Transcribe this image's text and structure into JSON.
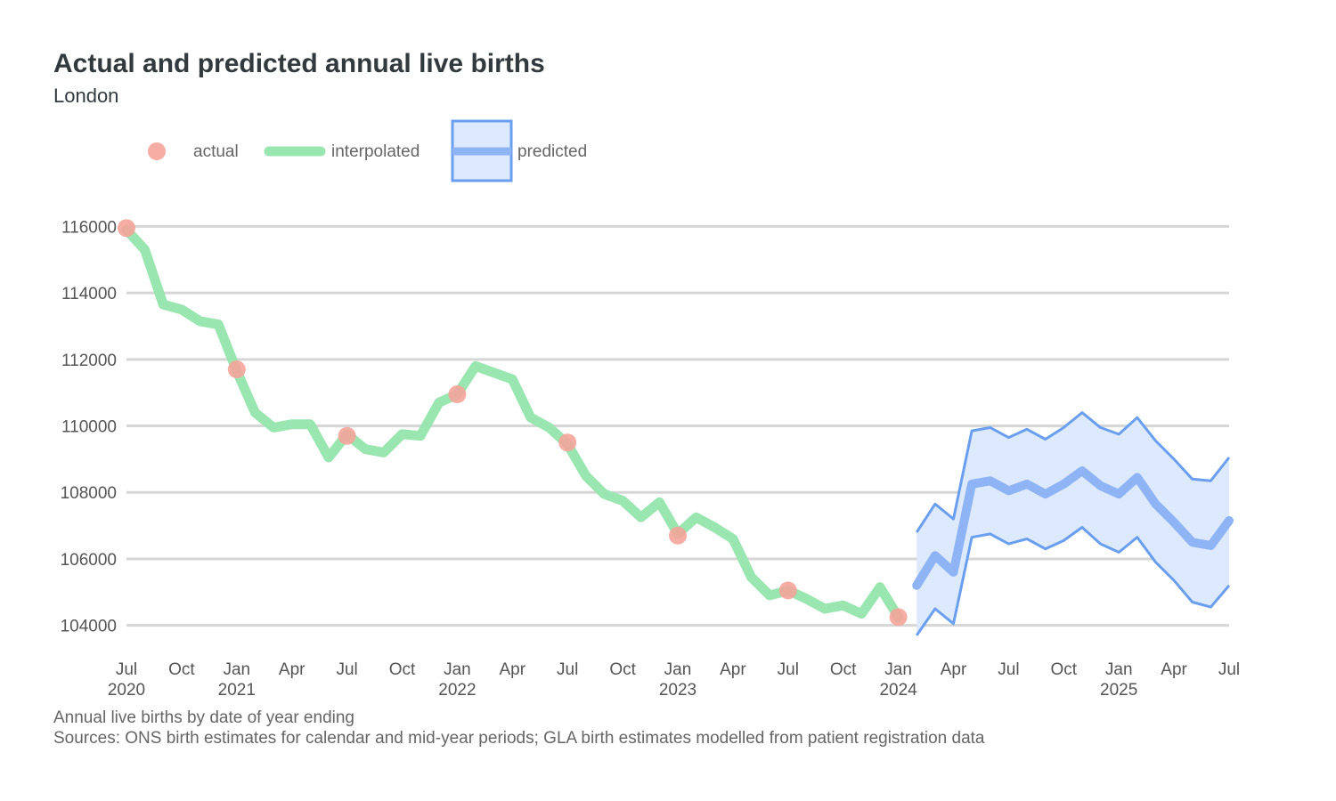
{
  "title": "Actual and predicted annual live births",
  "subtitle": "London",
  "caption": [
    "Annual live births by date of year ending",
    "Sources: ONS birth estimates for calendar and mid-year periods; GLA birth estimates modelled from patient registration data"
  ],
  "legend": {
    "position": "top-left",
    "items": [
      {
        "key": "actual",
        "label": "actual"
      },
      {
        "key": "interpolated",
        "label": "interpolated"
      },
      {
        "key": "predicted",
        "label": "predicted"
      }
    ]
  },
  "colors": {
    "actual": "#f4a49a",
    "interpolated": "#9ae6b0",
    "predicted_line": "#8eb4f5",
    "predicted_band_fill": "#dde9fc",
    "predicted_band_edge": "#6a9ff0",
    "grid": "#d6d6d6"
  },
  "chart_data": {
    "type": "line",
    "x_unit": "month of year ending",
    "xlim": [
      "2020-07",
      "2025-07"
    ],
    "ylim": [
      103000,
      116600
    ],
    "y_ticks": [
      104000,
      106000,
      108000,
      110000,
      112000,
      114000,
      116000
    ],
    "x_ticks": [
      {
        "date": "2020-07",
        "label": "Jul",
        "year": "2020"
      },
      {
        "date": "2020-10",
        "label": "Oct",
        "year": ""
      },
      {
        "date": "2021-01",
        "label": "Jan",
        "year": "2021"
      },
      {
        "date": "2021-04",
        "label": "Apr",
        "year": ""
      },
      {
        "date": "2021-07",
        "label": "Jul",
        "year": ""
      },
      {
        "date": "2021-10",
        "label": "Oct",
        "year": ""
      },
      {
        "date": "2022-01",
        "label": "Jan",
        "year": "2022"
      },
      {
        "date": "2022-04",
        "label": "Apr",
        "year": ""
      },
      {
        "date": "2022-07",
        "label": "Jul",
        "year": ""
      },
      {
        "date": "2022-10",
        "label": "Oct",
        "year": ""
      },
      {
        "date": "2023-01",
        "label": "Jan",
        "year": "2023"
      },
      {
        "date": "2023-04",
        "label": "Apr",
        "year": ""
      },
      {
        "date": "2023-07",
        "label": "Jul",
        "year": ""
      },
      {
        "date": "2023-10",
        "label": "Oct",
        "year": ""
      },
      {
        "date": "2024-01",
        "label": "Jan",
        "year": "2024"
      },
      {
        "date": "2024-04",
        "label": "Apr",
        "year": ""
      },
      {
        "date": "2024-07",
        "label": "Jul",
        "year": ""
      },
      {
        "date": "2024-10",
        "label": "Oct",
        "year": ""
      },
      {
        "date": "2025-01",
        "label": "Jan",
        "year": "2025"
      },
      {
        "date": "2025-04",
        "label": "Apr",
        "year": ""
      },
      {
        "date": "2025-07",
        "label": "Jul",
        "year": ""
      }
    ],
    "grid": true,
    "actual": {
      "x": [
        "2020-07",
        "2021-01",
        "2021-07",
        "2022-01",
        "2022-07",
        "2023-01",
        "2023-07",
        "2024-01"
      ],
      "y": [
        115950,
        111700,
        109700,
        110950,
        109500,
        106700,
        105050,
        104250
      ]
    },
    "interpolated": {
      "x": [
        "2020-07",
        "2020-08",
        "2020-09",
        "2020-10",
        "2020-11",
        "2020-12",
        "2021-01",
        "2021-02",
        "2021-03",
        "2021-04",
        "2021-05",
        "2021-06",
        "2021-07",
        "2021-08",
        "2021-09",
        "2021-10",
        "2021-11",
        "2021-12",
        "2022-01",
        "2022-02",
        "2022-03",
        "2022-04",
        "2022-05",
        "2022-06",
        "2022-07",
        "2022-08",
        "2022-09",
        "2022-10",
        "2022-11",
        "2022-12",
        "2023-01",
        "2023-02",
        "2023-03",
        "2023-04",
        "2023-05",
        "2023-06",
        "2023-07",
        "2023-08",
        "2023-09",
        "2023-10",
        "2023-11",
        "2023-12",
        "2024-01"
      ],
      "y": [
        115900,
        115300,
        113650,
        113500,
        113150,
        113050,
        111650,
        110400,
        109950,
        110050,
        110050,
        109050,
        109750,
        109300,
        109200,
        109750,
        109700,
        110700,
        110950,
        111800,
        111600,
        111400,
        110250,
        109950,
        109450,
        108500,
        107950,
        107750,
        107250,
        107700,
        106750,
        107250,
        106950,
        106600,
        105450,
        104900,
        105050,
        104800,
        104500,
        104600,
        104350,
        105150,
        104250
      ]
    },
    "predicted": {
      "x": [
        "2024-02",
        "2024-03",
        "2024-04",
        "2024-05",
        "2024-06",
        "2024-07",
        "2024-08",
        "2024-09",
        "2024-10",
        "2024-11",
        "2024-12",
        "2025-01",
        "2025-02",
        "2025-03",
        "2025-04",
        "2025-05",
        "2025-06",
        "2025-07"
      ],
      "y": [
        105200,
        106100,
        105600,
        108250,
        108350,
        108050,
        108250,
        107950,
        108250,
        108650,
        108200,
        107950,
        108450,
        107650,
        107100,
        106500,
        106400,
        107150
      ],
      "lower": [
        103700,
        104500,
        104050,
        106650,
        106750,
        106450,
        106600,
        106300,
        106550,
        106950,
        106450,
        106200,
        106650,
        105900,
        105350,
        104700,
        104550,
        105200
      ],
      "upper": [
        106800,
        107650,
        107200,
        109850,
        109950,
        109650,
        109900,
        109600,
        109950,
        110400,
        109950,
        109750,
        110250,
        109550,
        109000,
        108400,
        108350,
        109050
      ]
    }
  }
}
